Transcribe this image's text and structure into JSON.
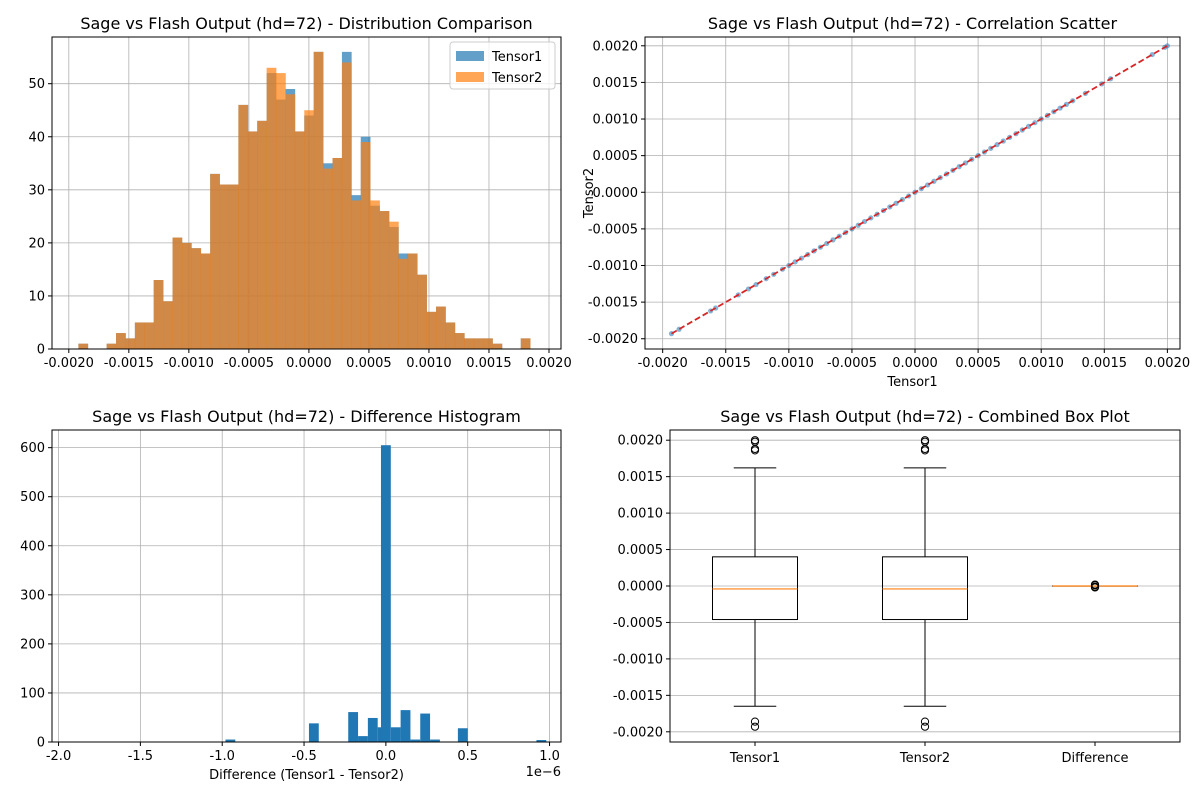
{
  "chart_data": [
    {
      "id": "dist",
      "type": "bar",
      "title": "Sage vs Flash Output (hd=72) - Distribution Comparison",
      "xlabel": "",
      "ylabel": "",
      "xlim": [
        -0.00214,
        0.0021
      ],
      "ylim": [
        0,
        58.8
      ],
      "bin_start": -0.00192,
      "bin_width": 7.84e-05,
      "xticks": [
        "-0.0020",
        "-0.0015",
        "-0.0010",
        "-0.0005",
        "0.0000",
        "0.0005",
        "0.0010",
        "0.0015",
        "0.0020"
      ],
      "xtick_values": [
        -0.002,
        -0.0015,
        -0.001,
        -0.0005,
        0,
        0.0005,
        0.001,
        0.0015,
        0.002
      ],
      "yticks": [
        "0",
        "10",
        "20",
        "30",
        "40",
        "50"
      ],
      "ytick_values": [
        0,
        10,
        20,
        30,
        40,
        50
      ],
      "grid": true,
      "legend_position": "top-right",
      "series": [
        {
          "name": "Tensor1",
          "color": "#1f77b4",
          "values": [
            1,
            0,
            0,
            1,
            3,
            2,
            5,
            5,
            13,
            9,
            21,
            20,
            19,
            18,
            33,
            31,
            31,
            46,
            41,
            43,
            52,
            47,
            49,
            41,
            44,
            56,
            35,
            36,
            56,
            29,
            40,
            27,
            26,
            23,
            18,
            18,
            14,
            7,
            8,
            5,
            3,
            2,
            2,
            2,
            1,
            0,
            0,
            2
          ]
        },
        {
          "name": "Tensor2",
          "color": "#ff7f0e",
          "values": [
            1,
            0,
            0,
            1,
            3,
            2,
            5,
            5,
            13,
            9,
            21,
            20,
            19,
            18,
            33,
            31,
            31,
            46,
            41,
            43,
            53,
            52,
            48,
            41,
            45,
            56,
            34,
            36,
            54,
            28,
            39,
            28,
            26,
            24,
            17,
            18,
            14,
            7,
            8,
            5,
            3,
            2,
            2,
            2,
            1,
            0,
            0,
            2
          ]
        }
      ]
    },
    {
      "id": "scatter",
      "type": "scatter",
      "title": "Sage vs Flash Output (hd=72) - Correlation Scatter",
      "xlabel": "Tensor1",
      "ylabel": "Tensor2",
      "xlim": [
        -0.00214,
        0.0021
      ],
      "ylim": [
        -0.00214,
        0.00212
      ],
      "xticks": [
        "-0.0020",
        "-0.0015",
        "-0.0010",
        "-0.0005",
        "0.0000",
        "0.0005",
        "0.0010",
        "0.0015",
        "0.0020"
      ],
      "xtick_values": [
        -0.002,
        -0.0015,
        -0.001,
        -0.0005,
        0,
        0.0005,
        0.001,
        0.0015,
        0.002
      ],
      "yticks": [
        "0.0020",
        "0.0015",
        "0.0010",
        "0.0005",
        "0.0000",
        "-0.0005",
        "-0.0010",
        "-0.0015",
        "-0.0020"
      ],
      "ytick_values": [
        0.002,
        0.0015,
        0.001,
        0.0005,
        0,
        -0.0005,
        -0.001,
        -0.0015,
        -0.002
      ],
      "grid": true,
      "point_color": "#1f77b4",
      "reference_line": {
        "x": [
          -0.00193,
          0.002
        ],
        "y": [
          -0.00193,
          0.002
        ],
        "color": "#d62728",
        "style": "dashed"
      },
      "points": [
        [
          -0.00193,
          -0.00193
        ],
        [
          -0.00187,
          -0.00187
        ],
        [
          -0.00162,
          -0.00162
        ],
        [
          -0.00158,
          -0.00158
        ],
        [
          -0.0014,
          -0.0014
        ],
        [
          -0.00132,
          -0.00132
        ],
        [
          -0.00126,
          -0.00126
        ],
        [
          -0.00118,
          -0.00118
        ],
        [
          -0.00112,
          -0.00112
        ],
        [
          -0.00105,
          -0.00105
        ],
        [
          -0.001,
          -0.001
        ],
        [
          -0.00095,
          -0.00095
        ],
        [
          -0.0009,
          -0.0009
        ],
        [
          -0.00085,
          -0.00085
        ],
        [
          -0.0008,
          -0.0008
        ],
        [
          -0.00075,
          -0.00075
        ],
        [
          -0.0007,
          -0.0007
        ],
        [
          -0.00065,
          -0.00065
        ],
        [
          -0.0006,
          -0.0006
        ],
        [
          -0.00055,
          -0.00055
        ],
        [
          -0.0005,
          -0.0005
        ],
        [
          -0.00045,
          -0.00045
        ],
        [
          -0.0004,
          -0.0004
        ],
        [
          -0.00035,
          -0.00035
        ],
        [
          -0.0003,
          -0.0003
        ],
        [
          -0.00025,
          -0.00025
        ],
        [
          -0.0002,
          -0.0002
        ],
        [
          -0.00015,
          -0.00015
        ],
        [
          -0.0001,
          -0.0001
        ],
        [
          -5e-05,
          -5e-05
        ],
        [
          0,
          0
        ],
        [
          5e-05,
          5e-05
        ],
        [
          0.0001,
          0.0001
        ],
        [
          0.00015,
          0.00015
        ],
        [
          0.0002,
          0.0002
        ],
        [
          0.00025,
          0.00025
        ],
        [
          0.0003,
          0.0003
        ],
        [
          0.00035,
          0.00035
        ],
        [
          0.0004,
          0.0004
        ],
        [
          0.00045,
          0.00045
        ],
        [
          0.0005,
          0.0005
        ],
        [
          0.00055,
          0.00055
        ],
        [
          0.0006,
          0.0006
        ],
        [
          0.00065,
          0.00065
        ],
        [
          0.0007,
          0.0007
        ],
        [
          0.00075,
          0.00075
        ],
        [
          0.0008,
          0.0008
        ],
        [
          0.00085,
          0.00085
        ],
        [
          0.0009,
          0.0009
        ],
        [
          0.00095,
          0.00095
        ],
        [
          0.001,
          0.001
        ],
        [
          0.00105,
          0.00105
        ],
        [
          0.0011,
          0.0011
        ],
        [
          0.00115,
          0.00115
        ],
        [
          0.0012,
          0.0012
        ],
        [
          0.00125,
          0.00125
        ],
        [
          0.00135,
          0.00135
        ],
        [
          0.00148,
          0.00148
        ],
        [
          0.00155,
          0.00155
        ],
        [
          0.00188,
          0.00188
        ],
        [
          0.00198,
          0.00198
        ],
        [
          0.002,
          0.002
        ]
      ]
    },
    {
      "id": "diffhist",
      "type": "bar",
      "title": "Sage vs Flash Output (hd=72) - Difference Histogram",
      "xlabel": "Difference (Tensor1 - Tensor2)",
      "ylabel": "",
      "x_offset_label": "1e−6",
      "xlim": [
        -2.04,
        1.07
      ],
      "ylim": [
        0,
        636
      ],
      "xticks": [
        "-2.0",
        "-1.5",
        "-1.0",
        "-0.5",
        "0.0",
        "0.5",
        "1.0"
      ],
      "xtick_values": [
        -2,
        -1.5,
        -1,
        -0.5,
        0,
        0.5,
        1
      ],
      "yticks": [
        "0",
        "100",
        "200",
        "300",
        "400",
        "500",
        "600"
      ],
      "ytick_values": [
        0,
        100,
        200,
        300,
        400,
        500,
        600
      ],
      "grid": true,
      "color": "#1f77b4",
      "bins": [
        {
          "x": -1.88,
          "w": 0.06,
          "v": 1
        },
        {
          "x": -0.98,
          "w": 0.06,
          "v": 5
        },
        {
          "x": -0.47,
          "w": 0.06,
          "v": 38
        },
        {
          "x": -0.35,
          "w": 0.06,
          "v": 1
        },
        {
          "x": -0.29,
          "w": 0.06,
          "v": 1
        },
        {
          "x": -0.23,
          "w": 0.06,
          "v": 61
        },
        {
          "x": -0.17,
          "w": 0.06,
          "v": 12
        },
        {
          "x": -0.11,
          "w": 0.06,
          "v": 49
        },
        {
          "x": -0.05,
          "w": 0.06,
          "v": 30
        },
        {
          "x": -0.03,
          "w": 0.06,
          "v": 605
        },
        {
          "x": 0.03,
          "w": 0.06,
          "v": 30
        },
        {
          "x": 0.09,
          "w": 0.06,
          "v": 65
        },
        {
          "x": 0.15,
          "w": 0.06,
          "v": 5
        },
        {
          "x": 0.21,
          "w": 0.06,
          "v": 58
        },
        {
          "x": 0.27,
          "w": 0.06,
          "v": 5
        },
        {
          "x": 0.33,
          "w": 0.06,
          "v": 1
        },
        {
          "x": 0.44,
          "w": 0.06,
          "v": 28
        },
        {
          "x": 0.92,
          "w": 0.06,
          "v": 4
        }
      ]
    },
    {
      "id": "box",
      "type": "box",
      "title": "Sage vs Flash Output (hd=72) - Combined Box Plot",
      "xlabel": "",
      "ylabel": "",
      "xlim": [
        0.5,
        3.5
      ],
      "ylim": [
        -0.00214,
        0.00214
      ],
      "categories": [
        "Tensor1",
        "Tensor2",
        "Difference"
      ],
      "yticks": [
        "0.0020",
        "0.0015",
        "0.0010",
        "0.0005",
        "0.0000",
        "-0.0005",
        "-0.0010",
        "-0.0015",
        "-0.0020"
      ],
      "ytick_values": [
        0.002,
        0.0015,
        0.001,
        0.0005,
        0,
        -0.0005,
        -0.001,
        -0.0015,
        -0.002
      ],
      "grid": true,
      "median_color": "#ff7f0e",
      "boxes": [
        {
          "pos": 1,
          "q1": -0.00046,
          "median": -4e-05,
          "q3": 0.0004,
          "whislo": -0.00165,
          "whishi": 0.00162,
          "fliers": [
            0.002,
            0.00198,
            0.00188,
            0.00186,
            -0.00186,
            -0.00193
          ]
        },
        {
          "pos": 2,
          "q1": -0.00046,
          "median": -4e-05,
          "q3": 0.0004,
          "whislo": -0.00165,
          "whishi": 0.00162,
          "fliers": [
            0.002,
            0.00198,
            0.00188,
            0.00186,
            -0.00186,
            -0.00193
          ]
        },
        {
          "pos": 3,
          "q1": 0,
          "median": 0,
          "q3": 0,
          "whislo": 0,
          "whishi": 0,
          "fliers": [
            2e-05,
            1e-05,
            -1e-05,
            -2e-05
          ]
        }
      ]
    }
  ]
}
